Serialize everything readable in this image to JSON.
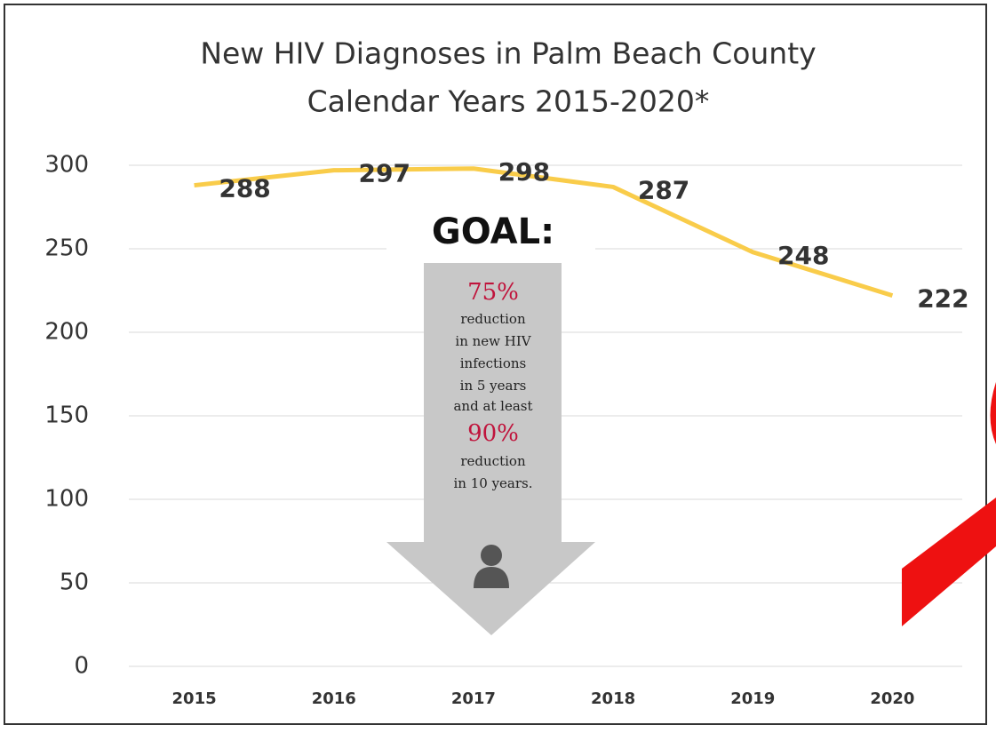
{
  "chart_data": {
    "type": "line",
    "title": "New HIV Diagnoses in Palm Beach County",
    "subtitle": "Calendar Years 2015-2020*",
    "categories": [
      "2015",
      "2016",
      "2017",
      "2018",
      "2019",
      "2020"
    ],
    "values": [
      288,
      297,
      298,
      287,
      248,
      222
    ],
    "color": "#f9cc4a",
    "ylim": [
      0,
      300
    ],
    "yticks": [
      0,
      50,
      100,
      150,
      200,
      250,
      300
    ],
    "grid": true,
    "annotation": {
      "heading": "GOAL:",
      "lines": [
        "75%",
        "reduction",
        "in new HIV",
        "infections",
        "in 5 years",
        "and at least",
        "90%",
        "reduction",
        "in 10 years."
      ]
    }
  }
}
